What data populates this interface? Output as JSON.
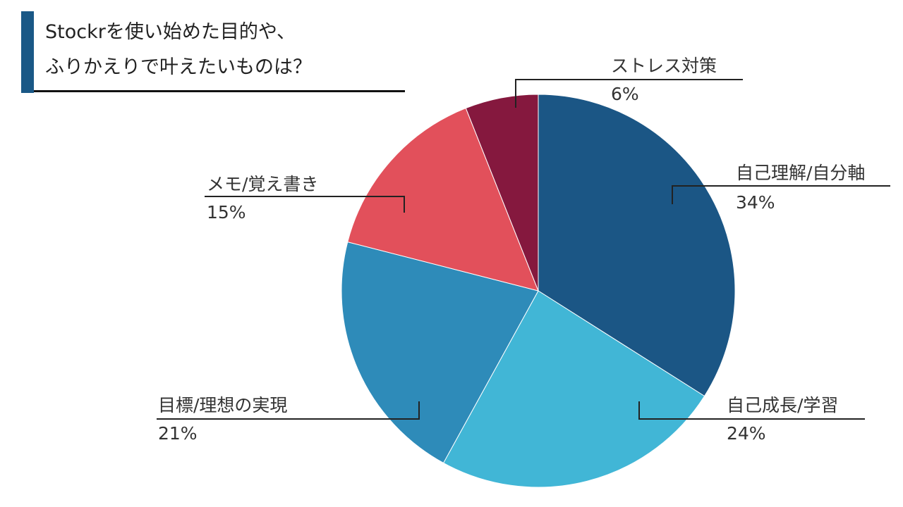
{
  "title": {
    "line1": "Stockrを使い始めた目的や、",
    "line2": "ふりかえりで叶えたいものは？"
  },
  "colors": {
    "title_accent": "#1a5886",
    "background": "#ffffff"
  },
  "chart_data": {
    "type": "pie",
    "title": "Stockrを使い始めた目的や、ふりかえりで叶えたいものは？",
    "start_angle": "12 o'clock",
    "direction": "clockwise",
    "slices": [
      {
        "label": "自己理解/自分軸",
        "value": 34,
        "value_label": "34%",
        "color": "#1b5685"
      },
      {
        "label": "自己成長/学習",
        "value": 24,
        "value_label": "24%",
        "color": "#41b6d6"
      },
      {
        "label": "目標/理想の実現",
        "value": 21,
        "value_label": "21%",
        "color": "#2e8bb9"
      },
      {
        "label": "メモ/覚え書き",
        "value": 15,
        "value_label": "15%",
        "color": "#e2505b"
      },
      {
        "label": "ストレス対策",
        "value": 6,
        "value_label": "6%",
        "color": "#85183e"
      }
    ]
  }
}
